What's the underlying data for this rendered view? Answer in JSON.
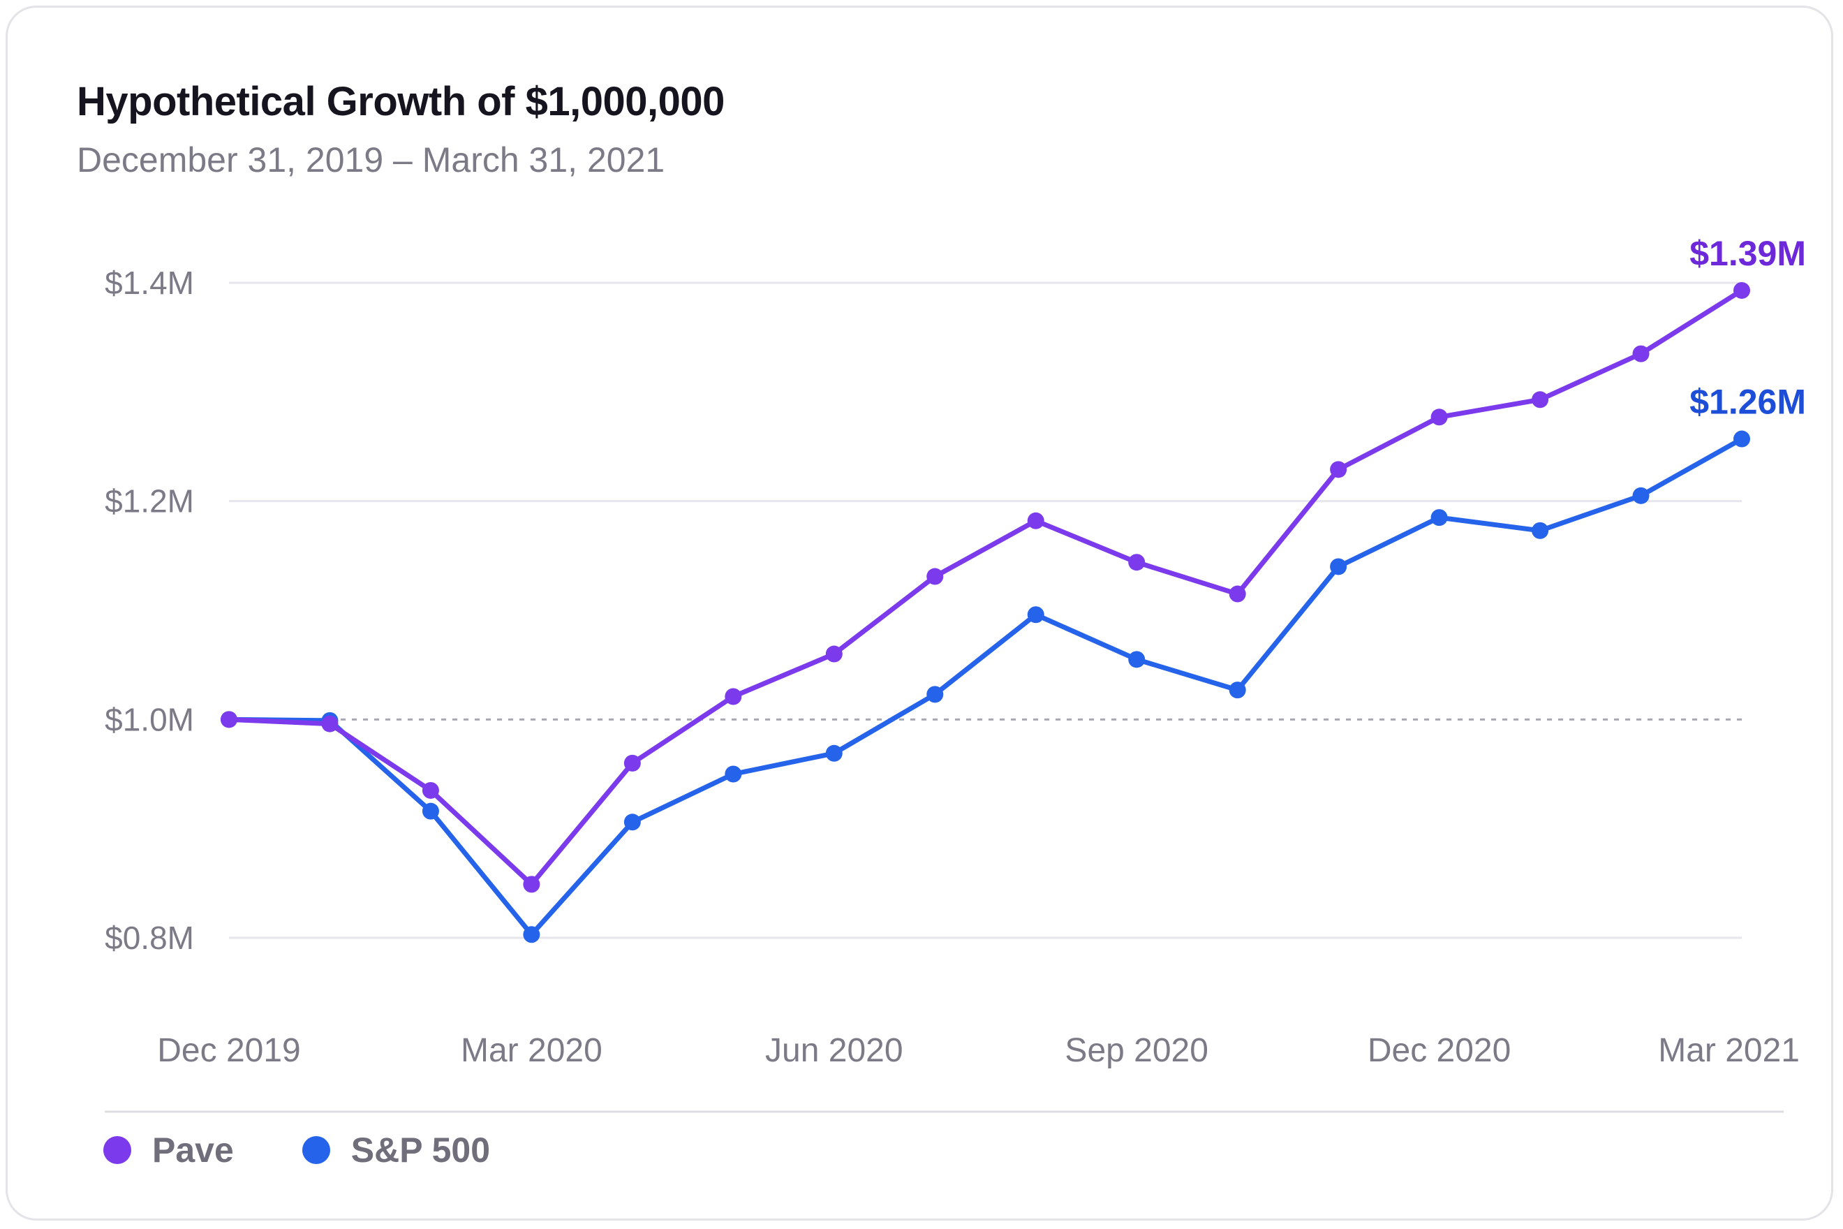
{
  "title": "Hypothetical Growth of $1,000,000",
  "subtitle": "December 31, 2019 – March 31, 2021",
  "colors": {
    "pave": "#7c3aed",
    "sp500": "#2563eb",
    "pave_label": "#6d28d9",
    "sp500_label": "#1d4ed8",
    "grid": "#e6e6ec",
    "baseline": "#a8a8b2",
    "tick_text": "#7b7a86"
  },
  "legend": {
    "items": [
      {
        "label": "Pave",
        "color": "#7c3aed"
      },
      {
        "label": "S&P 500",
        "color": "#2563eb"
      }
    ]
  },
  "chart_data": {
    "type": "line",
    "title": "Hypothetical Growth of $1,000,000",
    "subtitle": "December 31, 2019 – March 31, 2021",
    "xlabel": "",
    "ylabel": "",
    "x": [
      "Dec 2019",
      "Jan 2020",
      "Feb 2020",
      "Mar 2020",
      "Apr 2020",
      "May 2020",
      "Jun 2020",
      "Jul 2020",
      "Aug 2020",
      "Sep 2020",
      "Oct 2020",
      "Nov 2020",
      "Dec 2020",
      "Jan 2021",
      "Feb 2021",
      "Mar 2021"
    ],
    "x_ticks": [
      "Dec 2019",
      "Mar 2020",
      "Jun 2020",
      "Sep 2020",
      "Dec 2020",
      "Mar 2021"
    ],
    "y_ticks": [
      0.8,
      1.0,
      1.2,
      1.4
    ],
    "y_tick_labels": [
      "$0.8M",
      "$1.0M",
      "$1.2M",
      "$1.4M"
    ],
    "ylim": [
      0.8,
      1.4
    ],
    "baseline": 1.0,
    "grid": true,
    "series": [
      {
        "name": "Pave",
        "color": "#7c3aed",
        "values": [
          1.0,
          0.996,
          0.935,
          0.849,
          0.96,
          1.021,
          1.06,
          1.131,
          1.182,
          1.144,
          1.115,
          1.229,
          1.277,
          1.293,
          1.335,
          1.393
        ],
        "end_label": "$1.39M"
      },
      {
        "name": "S&P 500",
        "color": "#2563eb",
        "values": [
          1.0,
          0.999,
          0.916,
          0.803,
          0.906,
          0.95,
          0.969,
          1.023,
          1.096,
          1.055,
          1.027,
          1.14,
          1.185,
          1.173,
          1.205,
          1.257
        ],
        "end_label": "$1.26M"
      }
    ],
    "legend_position": "bottom-left"
  }
}
